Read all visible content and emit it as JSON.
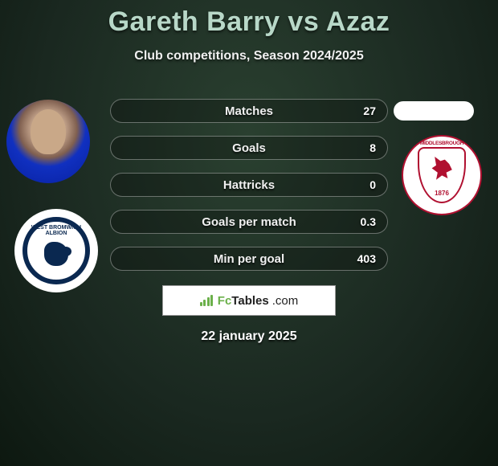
{
  "header": {
    "title": "Gareth Barry vs Azaz",
    "subtitle": "Club competitions, Season 2024/2025"
  },
  "player_left": {
    "name": "Gareth Barry",
    "club": "West Bromwich Albion",
    "club_badge_text": "WEST BROMWICH",
    "club_badge_sub": "ALBION"
  },
  "player_right": {
    "name": "Azaz",
    "club": "Middlesbrough",
    "club_badge_text": "MIDDLESBROUGH",
    "club_badge_year": "1876"
  },
  "bars": [
    {
      "label": "Matches",
      "left": "",
      "right": "27"
    },
    {
      "label": "Goals",
      "left": "",
      "right": "8"
    },
    {
      "label": "Hattricks",
      "left": "",
      "right": "0"
    },
    {
      "label": "Goals per match",
      "left": "",
      "right": "0.3"
    },
    {
      "label": "Min per goal",
      "left": "",
      "right": "403"
    }
  ],
  "branding": {
    "name_main": "FcTables",
    "name_suffix": ".com"
  },
  "date": "22 january 2025",
  "style": {
    "title_color": "#b8d8c8",
    "bg_gradient_center": "#2a4030",
    "bg_gradient_outer": "#0d1810",
    "bar_border": "rgba(255,255,255,0.35)",
    "accent_green": "#6bb04a",
    "wba_navy": "#0a2850",
    "boro_red": "#b01030"
  }
}
